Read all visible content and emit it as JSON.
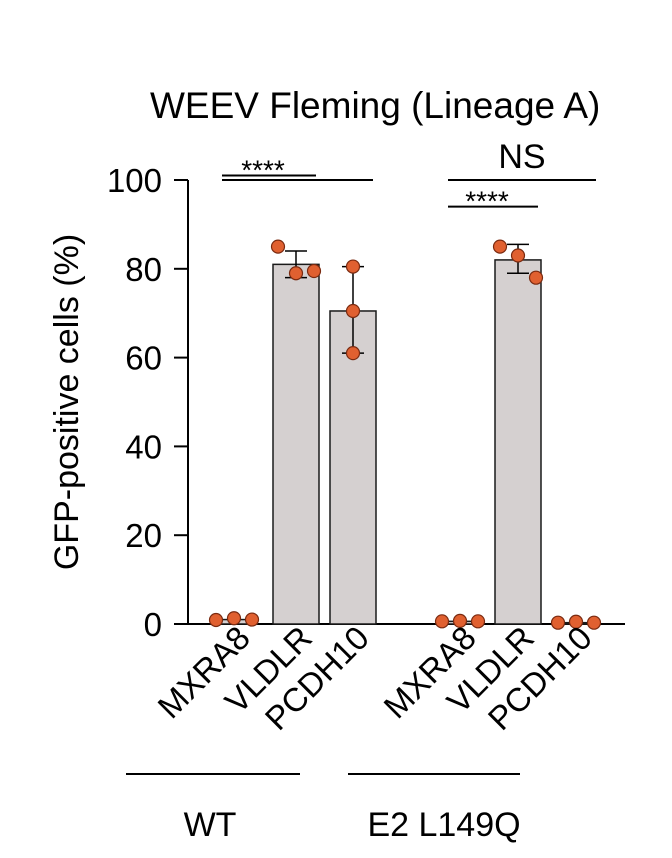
{
  "chart_data": {
    "type": "bar",
    "title": "WEEV Fleming (Lineage A)",
    "ylabel": "GFP-positive cells (%)",
    "xlabel": "",
    "ylim": [
      0,
      100
    ],
    "yticks": [
      0,
      20,
      40,
      60,
      80,
      100
    ],
    "colors": {
      "bar_fill": "#d5d0d0",
      "bar_stroke": "#1a1a1a",
      "dot_fill": "#e06030",
      "dot_stroke": "#7a2a10"
    },
    "groups": [
      {
        "name": "WT",
        "bars": [
          {
            "category": "MXRA8",
            "mean": 1.0,
            "sd_low": 1.0,
            "sd_high": 1.0,
            "points": [
              0.9,
              1.3,
              1.0
            ]
          },
          {
            "category": "VLDLR",
            "mean": 81.0,
            "sd_low": 78.0,
            "sd_high": 84.0,
            "points": [
              85.0,
              79.0,
              79.5
            ]
          },
          {
            "category": "PCDH10",
            "mean": 70.5,
            "sd_low": 61.0,
            "sd_high": 80.5,
            "points": [
              80.5,
              70.5,
              61.0
            ]
          }
        ]
      },
      {
        "name": "E2 L149Q",
        "bars": [
          {
            "category": "MXRA8",
            "mean": 0.6,
            "sd_low": 0.6,
            "sd_high": 0.6,
            "points": [
              0.6,
              0.7,
              0.6
            ]
          },
          {
            "category": "VLDLR",
            "mean": 82.0,
            "sd_low": 79.0,
            "sd_high": 85.5,
            "points": [
              85.0,
              83.0,
              78.0
            ]
          },
          {
            "category": "PCDH10",
            "mean": 0.3,
            "sd_low": 0.3,
            "sd_high": 0.3,
            "points": [
              0.3,
              0.5,
              0.3
            ]
          }
        ]
      }
    ],
    "annotations": [
      {
        "text": "****",
        "group": 0,
        "from": 0,
        "to": 1,
        "level": 101
      },
      {
        "text": "",
        "group": 0,
        "from": 0,
        "to": 2,
        "level": 100
      },
      {
        "text": "NS",
        "group": 1,
        "from": 0,
        "to": 2,
        "level": 100
      },
      {
        "text": "****",
        "group": 1,
        "from": 0,
        "to": 1,
        "level": 94
      }
    ]
  }
}
